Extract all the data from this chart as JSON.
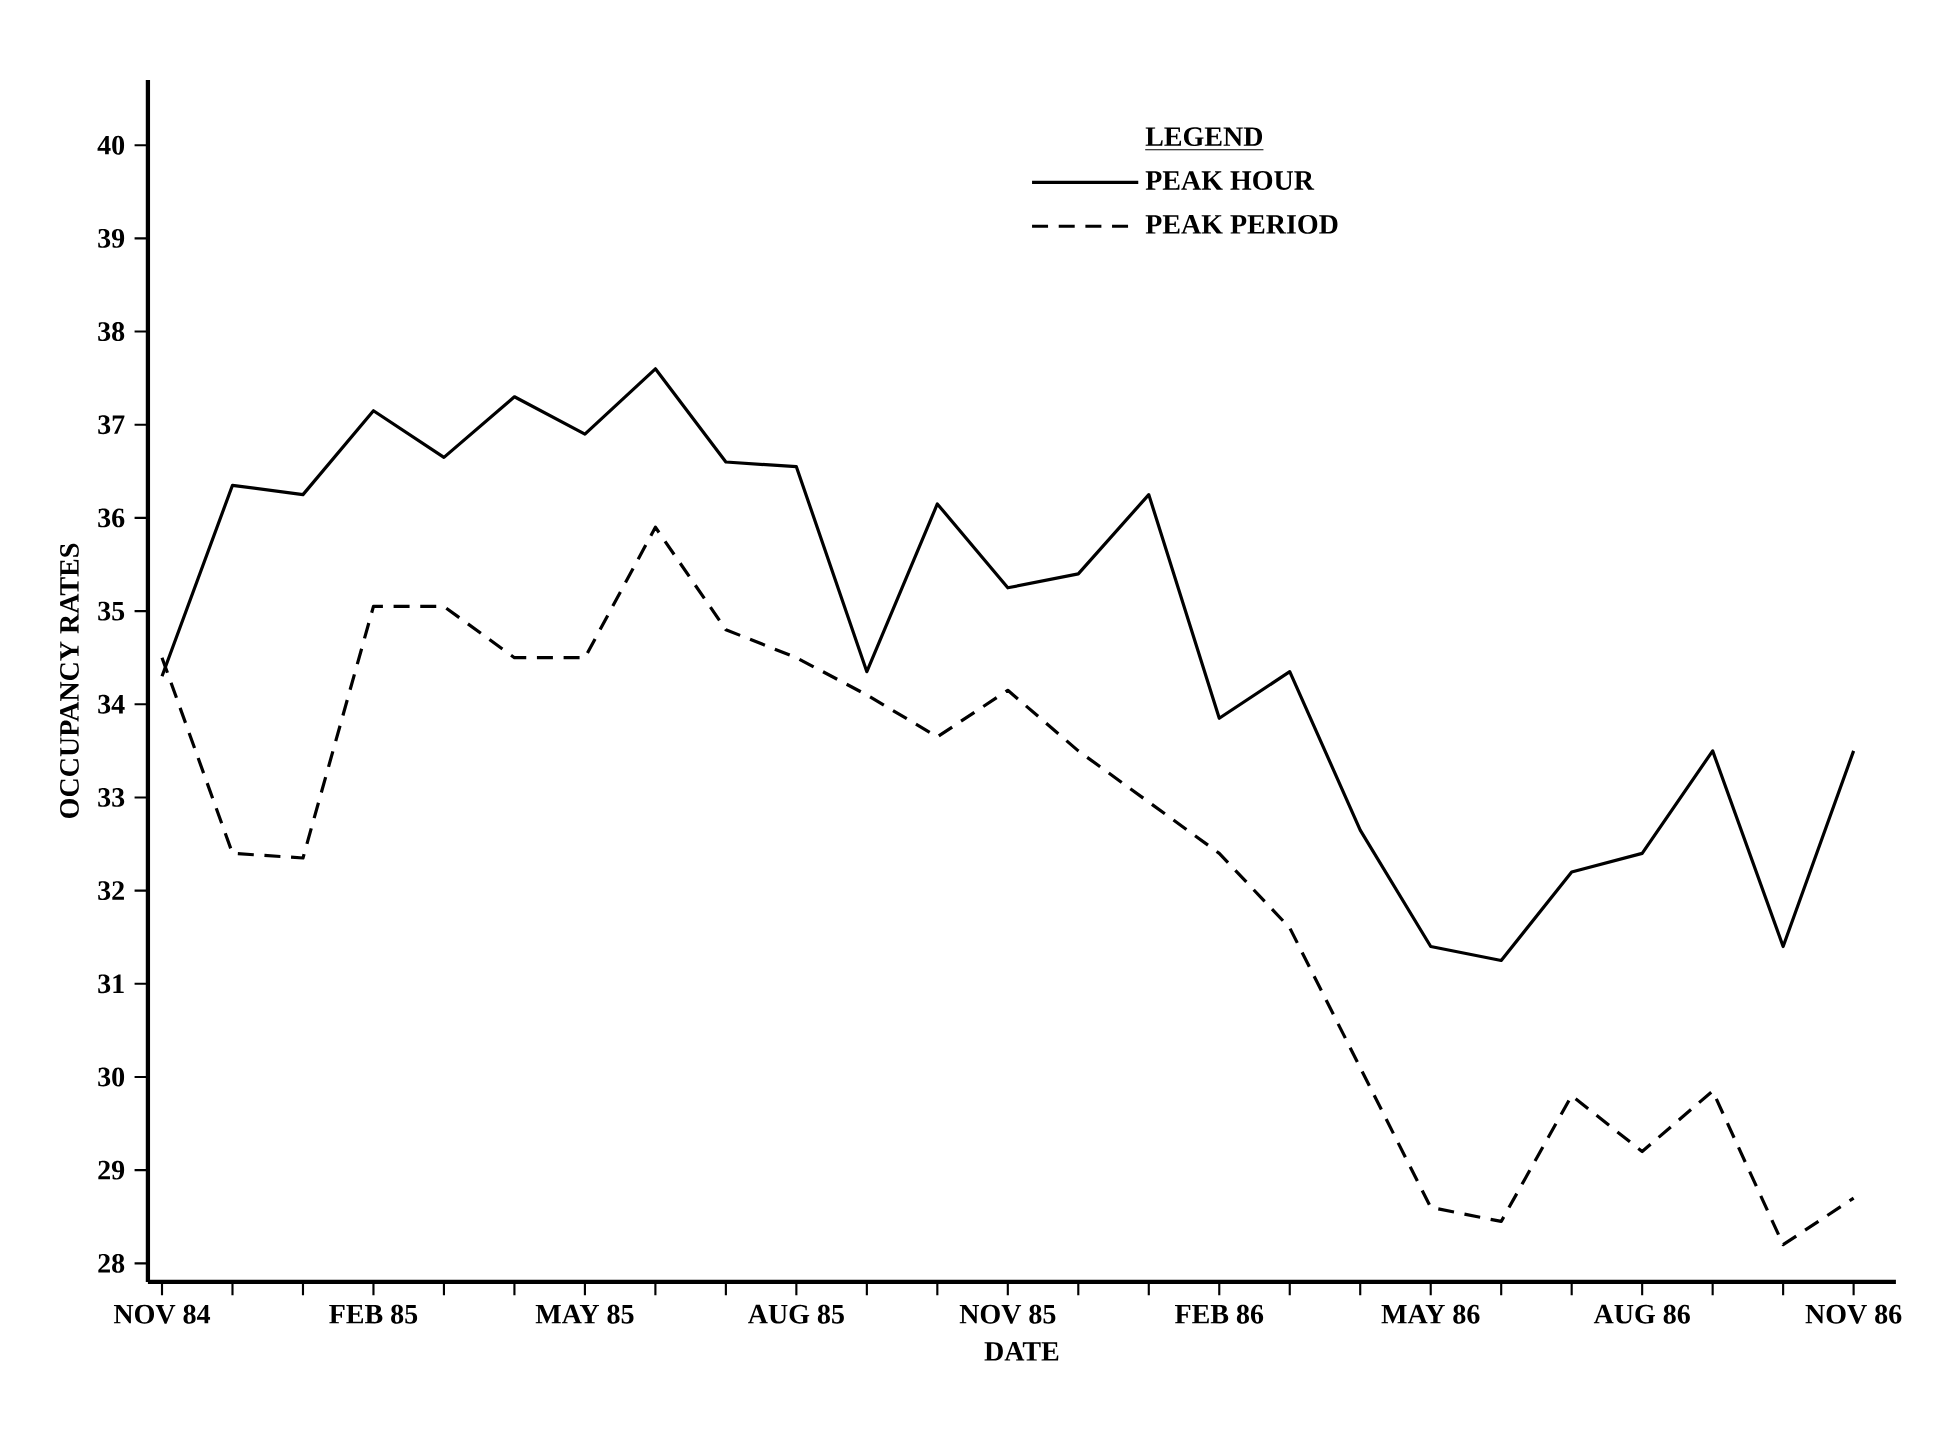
{
  "chart_data": {
    "type": "line",
    "xlabel": "DATE",
    "ylabel": "OCCUPANCY RATES",
    "legend_title": "LEGEND",
    "legend": "top right",
    "categories": [
      "NOV 84",
      null,
      null,
      "FEB 85",
      null,
      null,
      "MAY 85",
      null,
      null,
      "AUG 85",
      null,
      null,
      "NOV 85",
      null,
      null,
      "FEB 86",
      null,
      null,
      "MAY 86",
      null,
      null,
      "AUG 86",
      null,
      null,
      "NOV 86"
    ],
    "ylim": [
      27.8,
      40.7
    ],
    "yticks": [
      28,
      29,
      30,
      31,
      32,
      33,
      34,
      35,
      36,
      37,
      38,
      39,
      40
    ],
    "series": [
      {
        "name": "PEAK HOUR",
        "color": "#000000",
        "line_style": "solid",
        "values": [
          34.3,
          36.35,
          36.25,
          37.15,
          36.65,
          37.3,
          36.9,
          37.6,
          36.6,
          36.55,
          34.35,
          36.15,
          35.25,
          35.4,
          36.25,
          33.85,
          34.35,
          32.65,
          31.4,
          31.25,
          32.2,
          32.4,
          33.5,
          31.4,
          33.5
        ]
      },
      {
        "name": "PEAK PERIOD",
        "color": "#000000",
        "line_style": "dashed",
        "values": [
          34.5,
          32.4,
          32.35,
          35.05,
          35.05,
          34.5,
          34.5,
          35.9,
          34.8,
          34.5,
          34.1,
          33.65,
          34.15,
          33.5,
          32.95,
          32.4,
          31.6,
          30.1,
          28.6,
          28.45,
          29.8,
          29.2,
          29.85,
          28.2,
          28.7
        ]
      }
    ]
  }
}
